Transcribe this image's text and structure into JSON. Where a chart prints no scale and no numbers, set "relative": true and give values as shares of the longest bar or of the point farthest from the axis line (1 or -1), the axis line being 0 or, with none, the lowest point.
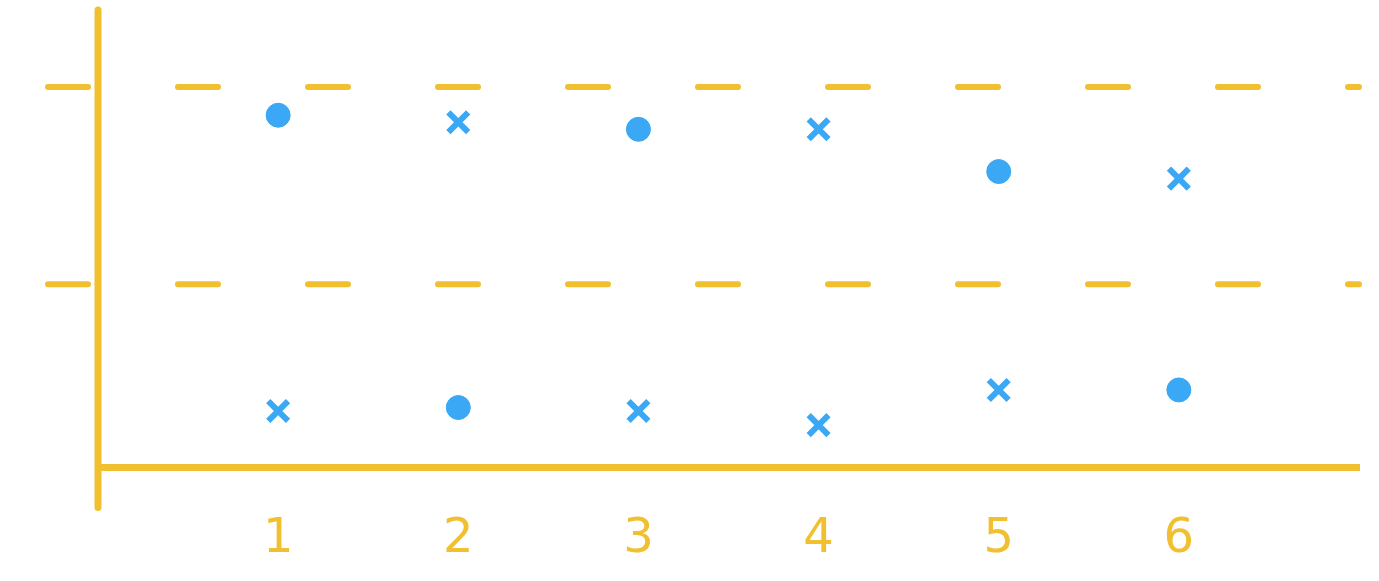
{
  "chart_data": {
    "type": "scatter",
    "relative": true,
    "xlim": [
      0,
      7
    ],
    "xticks": [
      1,
      2,
      3,
      4,
      5,
      6
    ],
    "grid": false,
    "legend": false,
    "series": [
      {
        "color": "#3aa8f5",
        "marker": "circle",
        "x": [
          1,
          2,
          3,
          5,
          6
        ],
        "values": [
          1.0,
          0.17,
          0.96,
          0.84,
          0.22
        ]
      },
      {
        "color": "#3aa8f5",
        "marker": "cross",
        "x": [
          1,
          2,
          3,
          4,
          4,
          5,
          6
        ],
        "values": [
          0.16,
          0.98,
          0.16,
          0.96,
          0.12,
          0.22,
          0.82
        ]
      }
    ],
    "ref_lines": [
      {
        "axis": "x",
        "value": 0,
        "color": "#f0c030",
        "line_style": "solid"
      },
      {
        "axis": "y",
        "value": 1.08,
        "color": "#f0c030",
        "line_style": "dashed"
      },
      {
        "axis": "y",
        "value": 0.52,
        "color": "#f0c030",
        "line_style": "dashed"
      }
    ]
  }
}
